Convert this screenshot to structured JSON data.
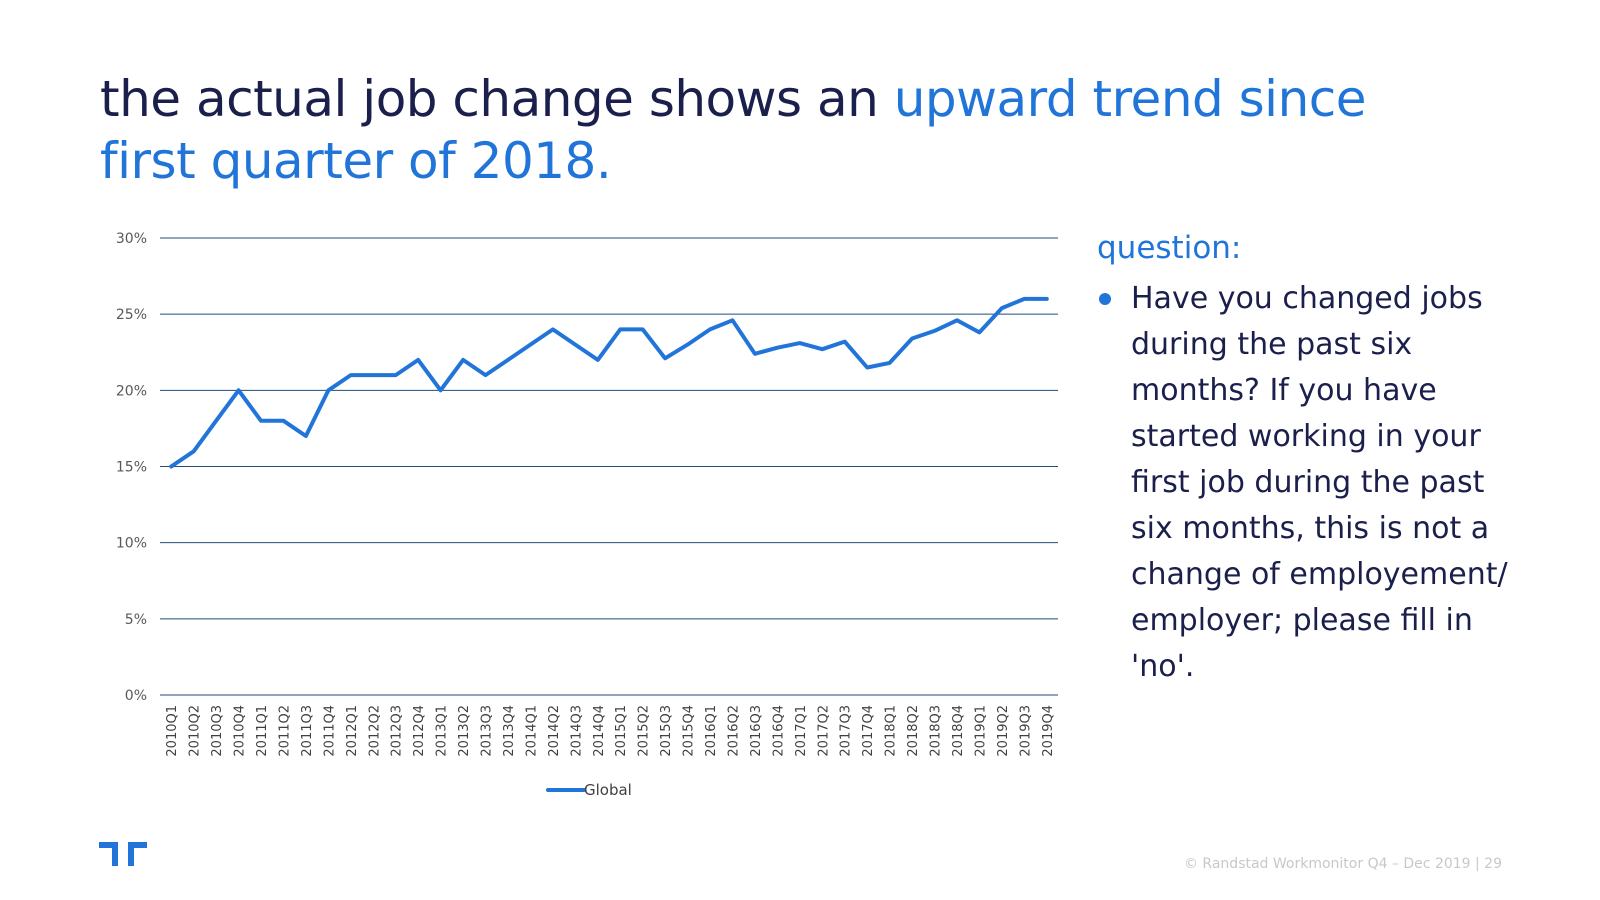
{
  "slide": {
    "title_part1": "the actual job change shows an ",
    "title_part2": "upward trend since first quarter of 2018.",
    "accent_color": "#2175d9",
    "text_color": "#1b1f4b"
  },
  "question": {
    "heading": "question:",
    "bullets": [
      "Have you changed jobs during the past six months? If you have started working in your first job during the past six months, this is not a change of employement/ employer; please fill in 'no'."
    ]
  },
  "footer": {
    "text": "© Randstad Workmonitor Q4 – Dec 2019 |  29"
  },
  "logo": {
    "icon": "randstad-logo-icon"
  },
  "chart_data": {
    "type": "line",
    "title": "",
    "xlabel": "",
    "ylabel": "",
    "ylim": [
      0,
      30
    ],
    "y_ticks": [
      "0%",
      "5%",
      "10%",
      "15%",
      "20%",
      "25%",
      "30%"
    ],
    "grid": true,
    "legend_position": "bottom",
    "categories": [
      "2010Q1",
      "2010Q2",
      "2010Q3",
      "2010Q4",
      "2011Q1",
      "2011Q2",
      "2011Q3",
      "2011Q4",
      "2012Q1",
      "2012Q2",
      "2012Q3",
      "2012Q4",
      "2013Q1",
      "2013Q2",
      "2013Q3",
      "2013Q4",
      "2014Q1",
      "2014Q2",
      "2014Q3",
      "2014Q4",
      "2015Q1",
      "2015Q2",
      "2015Q3",
      "2015Q4",
      "2016Q1",
      "2016Q2",
      "2016Q3",
      "2016Q4",
      "2017Q1",
      "2017Q2",
      "2017Q3",
      "2017Q4",
      "2018Q1",
      "2018Q2",
      "2018Q3",
      "2018Q4",
      "2019Q1",
      "2019Q2",
      "2019Q3",
      "2019Q4"
    ],
    "series": [
      {
        "name": "Global",
        "color": "#2175d9",
        "values": [
          15,
          16,
          18,
          20,
          18,
          18,
          17,
          20,
          21,
          21,
          21,
          22,
          20,
          22,
          21,
          22,
          23,
          24,
          23,
          22,
          24,
          24,
          22.1,
          23,
          24,
          24.6,
          22.4,
          22.8,
          23.1,
          22.7,
          23.2,
          21.5,
          21.8,
          23.4,
          23.9,
          24.6,
          23.8,
          25.4,
          26,
          26
        ]
      }
    ]
  }
}
